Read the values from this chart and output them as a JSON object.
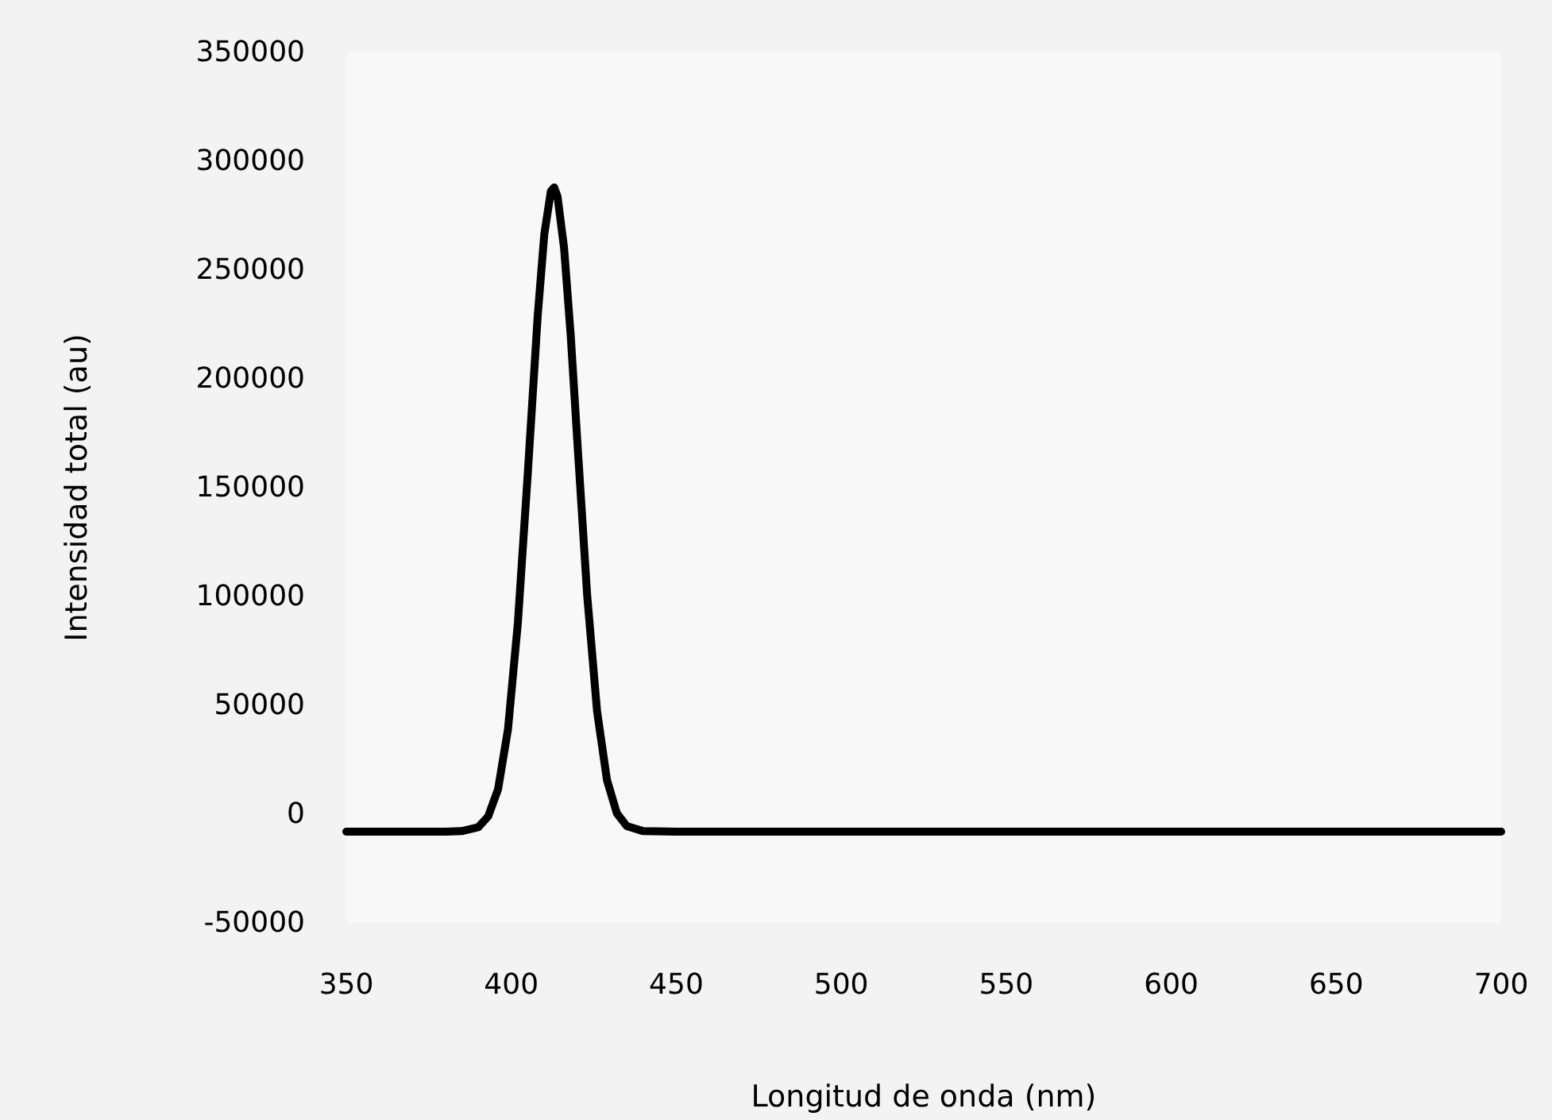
{
  "chart_data": {
    "type": "line",
    "xlabel": "Longitud de onda (nm)",
    "ylabel": "Intensidad total (au)",
    "x": [
      350,
      380,
      385,
      390,
      393,
      396,
      399,
      402,
      405,
      408,
      410,
      412,
      413,
      414,
      416,
      418,
      420,
      423,
      426,
      429,
      432,
      435,
      440,
      450,
      700
    ],
    "series": [
      {
        "color": "#000000",
        "values": [
          -8000,
          -8000,
          -7800,
          -6000,
          -1000,
          11500,
          39000,
          88000,
          156600,
          228800,
          266400,
          286200,
          288000,
          283900,
          260200,
          220200,
          171700,
          100600,
          47300,
          15700,
          400,
          -5500,
          -7800,
          -8000,
          -8000
        ]
      }
    ],
    "xlim": [
      350,
      700
    ],
    "xticks": [
      350,
      400,
      450,
      500,
      550,
      600,
      650,
      700
    ],
    "ylim": [
      -50000,
      350000
    ],
    "yticks": [
      -50000,
      0,
      50000,
      100000,
      150000,
      200000,
      250000,
      300000,
      350000
    ],
    "grid": false,
    "marker": "none",
    "line_style": "solid"
  }
}
